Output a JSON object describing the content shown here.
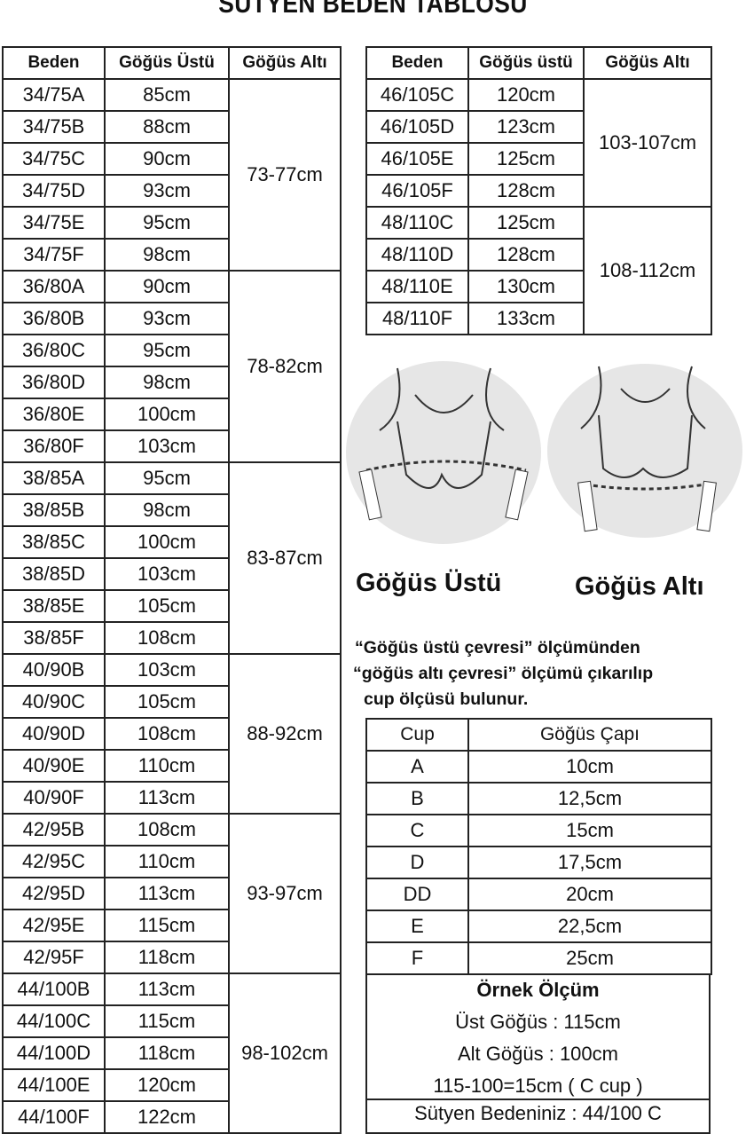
{
  "title": "SÜTYEN BEDEN TABLOSU",
  "left_table": {
    "headers": [
      "Beden",
      "Göğüs Üstü",
      "Göğüs Altı"
    ],
    "groups": [
      {
        "alti": "73-77cm",
        "rows": [
          [
            "34/75A",
            "85cm"
          ],
          [
            "34/75B",
            "88cm"
          ],
          [
            "34/75C",
            "90cm"
          ],
          [
            "34/75D",
            "93cm"
          ],
          [
            "34/75E",
            "95cm"
          ],
          [
            "34/75F",
            "98cm"
          ]
        ]
      },
      {
        "alti": "78-82cm",
        "rows": [
          [
            "36/80A",
            "90cm"
          ],
          [
            "36/80B",
            "93cm"
          ],
          [
            "36/80C",
            "95cm"
          ],
          [
            "36/80D",
            "98cm"
          ],
          [
            "36/80E",
            "100cm"
          ],
          [
            "36/80F",
            "103cm"
          ]
        ]
      },
      {
        "alti": "83-87cm",
        "rows": [
          [
            "38/85A",
            "95cm"
          ],
          [
            "38/85B",
            "98cm"
          ],
          [
            "38/85C",
            "100cm"
          ],
          [
            "38/85D",
            "103cm"
          ],
          [
            "38/85E",
            "105cm"
          ],
          [
            "38/85F",
            "108cm"
          ]
        ]
      },
      {
        "alti": "88-92cm",
        "rows": [
          [
            "40/90B",
            "103cm"
          ],
          [
            "40/90C",
            "105cm"
          ],
          [
            "40/90D",
            "108cm"
          ],
          [
            "40/90E",
            "110cm"
          ],
          [
            "40/90F",
            "113cm"
          ]
        ]
      },
      {
        "alti": "93-97cm",
        "rows": [
          [
            "42/95B",
            "108cm"
          ],
          [
            "42/95C",
            "110cm"
          ],
          [
            "42/95D",
            "113cm"
          ],
          [
            "42/95E",
            "115cm"
          ],
          [
            "42/95F",
            "118cm"
          ]
        ]
      },
      {
        "alti": "98-102cm",
        "rows": [
          [
            "44/100B",
            "113cm"
          ],
          [
            "44/100C",
            "115cm"
          ],
          [
            "44/100D",
            "118cm"
          ],
          [
            "44/100E",
            "120cm"
          ],
          [
            "44/100F",
            "122cm"
          ]
        ]
      }
    ]
  },
  "right_table": {
    "headers": [
      "Beden",
      "Göğüs üstü",
      "Göğüs Altı"
    ],
    "groups": [
      {
        "alti": "103-107cm",
        "rows": [
          [
            "46/105C",
            "120cm"
          ],
          [
            "46/105D",
            "123cm"
          ],
          [
            "46/105E",
            "125cm"
          ],
          [
            "46/105F",
            "128cm"
          ]
        ]
      },
      {
        "alti": "108-112cm",
        "rows": [
          [
            "48/110C",
            "125cm"
          ],
          [
            "48/110D",
            "128cm"
          ],
          [
            "48/110E",
            "130cm"
          ],
          [
            "48/110F",
            "133cm"
          ]
        ]
      }
    ]
  },
  "illustrations": {
    "left_label": "Göğüs Üstü",
    "right_label": "Göğüs Altı"
  },
  "note": [
    "“Göğüs üstü çevresi” ölçümünden",
    "“göğüs altı çevresi” ölçümü çıkarılıp",
    "cup ölçüsü bulunur."
  ],
  "cup_table": {
    "headers": [
      "Cup",
      "Göğüs Çapı"
    ],
    "rows": [
      [
        "A",
        "10cm"
      ],
      [
        "B",
        "12,5cm"
      ],
      [
        "C",
        "15cm"
      ],
      [
        "D",
        "17,5cm"
      ],
      [
        "DD",
        "20cm"
      ],
      [
        "E",
        "22,5cm"
      ],
      [
        "F",
        "25cm"
      ]
    ]
  },
  "example": {
    "heading": "Örnek Ölçüm",
    "lines": [
      "Üst Göğüs : 115cm",
      "Alt Göğüs  : 100cm",
      "115-100=15cm ( C cup )"
    ],
    "result": "Sütyen Bedeniniz : 44/100 C"
  }
}
